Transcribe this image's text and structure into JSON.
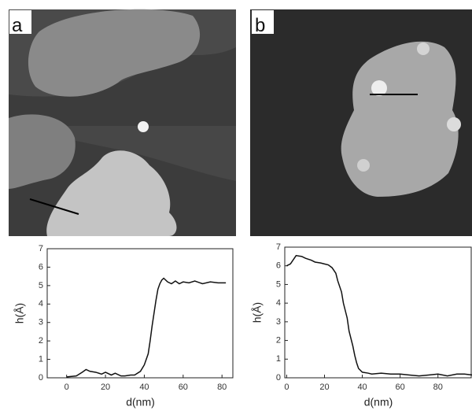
{
  "chart_data": [
    {
      "type": "line",
      "panel_label": "a",
      "x_label": "d(nm)",
      "y_label": "h(Å)",
      "x": [
        0,
        5,
        8,
        10,
        12,
        15,
        18,
        20,
        23,
        25,
        28,
        30,
        33,
        35,
        38,
        40,
        42,
        43,
        44,
        45,
        46,
        47,
        48,
        49,
        50,
        52,
        54,
        56,
        58,
        60,
        63,
        66,
        70,
        74,
        78,
        82
      ],
      "values": [
        0.05,
        0.1,
        0.3,
        0.45,
        0.35,
        0.3,
        0.2,
        0.3,
        0.15,
        0.25,
        0.1,
        0.1,
        0.15,
        0.15,
        0.35,
        0.7,
        1.3,
        2.0,
        2.8,
        3.5,
        4.2,
        4.8,
        5.1,
        5.3,
        5.4,
        5.2,
        5.1,
        5.25,
        5.1,
        5.2,
        5.15,
        5.25,
        5.1,
        5.2,
        5.15,
        5.15
      ],
      "color": "#111111",
      "xlim": [
        -10,
        86
      ],
      "ylim": [
        0,
        7
      ],
      "xticks": [
        0,
        20,
        40,
        60,
        80
      ],
      "yticks": [
        0,
        1,
        2,
        3,
        4,
        5,
        6,
        7
      ]
    },
    {
      "type": "line",
      "panel_label": "b",
      "x_label": "d(nm)",
      "y_label": "h(Å)",
      "x": [
        0,
        2,
        5,
        8,
        10,
        13,
        15,
        18,
        20,
        22,
        24,
        26,
        27,
        29,
        30,
        32,
        33,
        35,
        36,
        37,
        38,
        40,
        43,
        45,
        50,
        55,
        60,
        65,
        70,
        75,
        80,
        85,
        90,
        94,
        98
      ],
      "values": [
        6.0,
        6.1,
        6.55,
        6.5,
        6.4,
        6.3,
        6.2,
        6.15,
        6.1,
        6.05,
        5.9,
        5.6,
        5.2,
        4.6,
        4.0,
        3.2,
        2.5,
        1.7,
        1.2,
        0.8,
        0.5,
        0.3,
        0.25,
        0.2,
        0.25,
        0.2,
        0.2,
        0.15,
        0.1,
        0.15,
        0.2,
        0.1,
        0.2,
        0.2,
        0.15
      ],
      "color": "#111111",
      "xlim": [
        -1,
        98
      ],
      "ylim": [
        0,
        7
      ],
      "xticks": [
        0,
        20,
        40,
        60,
        80
      ],
      "yticks": [
        0,
        1,
        2,
        3,
        4,
        5,
        6,
        7
      ]
    }
  ]
}
